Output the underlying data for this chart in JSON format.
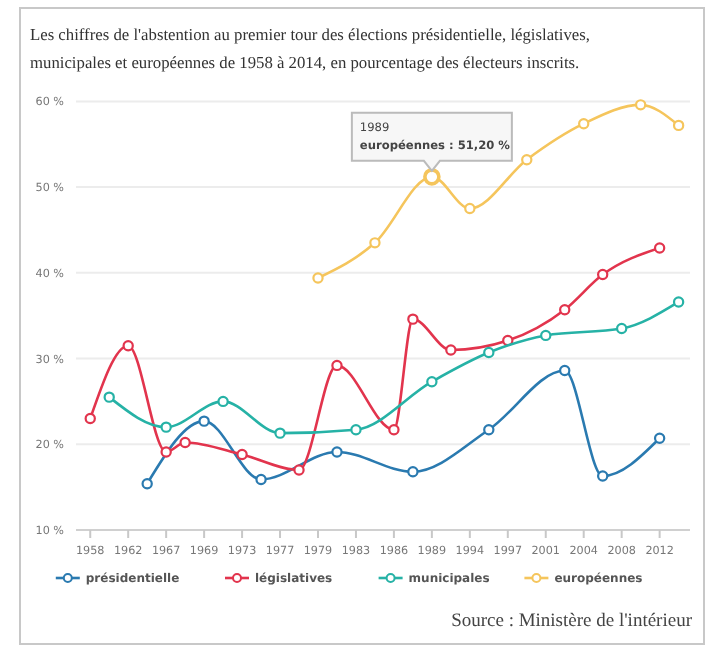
{
  "chart_data": {
    "type": "line",
    "title": "Les chiffres de l'abstention au premier tour des élections présidentielle, législatives, municipales et européennes de 1958 à 2014, en pourcentage des électeurs inscrits.",
    "annotations": [
      {
        "text": "1989\neuropéennes : 51,20 %",
        "x": "1989",
        "y": 51.2
      },
      "Source : Ministère de l'intérieur"
    ],
    "categories": [
      "1958",
      null,
      "1962",
      null,
      "1967",
      null,
      "1969",
      null,
      "1973",
      null,
      "1977",
      null,
      "1979",
      null,
      "1983",
      null,
      "1986",
      null,
      "1989",
      null,
      "1994",
      null,
      "1997",
      null,
      "2001",
      null,
      "2004",
      null,
      "2008",
      null,
      "2012",
      null
    ],
    "ylim": [
      10,
      60
    ],
    "yticks": [
      {
        "value": 10,
        "label": "10 %"
      },
      {
        "value": 20,
        "label": "20 %"
      },
      {
        "value": 30,
        "label": "30 %"
      },
      {
        "value": 40,
        "label": "40 %"
      },
      {
        "value": 50,
        "label": "50 %"
      },
      {
        "value": 60,
        "label": "60 %"
      }
    ],
    "grid": "y",
    "legend": "bottom",
    "marker": "circle",
    "line_style": "solid",
    "series": [
      {
        "name": "présidentielle",
        "color": "#2a7ab0",
        "values": [
          null,
          null,
          null,
          15.4,
          null,
          null,
          22.7,
          null,
          null,
          15.9,
          null,
          null,
          null,
          19.1,
          null,
          null,
          null,
          16.8,
          null,
          null,
          null,
          21.7,
          null,
          null,
          null,
          28.6,
          null,
          16.3,
          null,
          null,
          20.7,
          null
        ]
      },
      {
        "name": "législatives",
        "color": "#e2344d",
        "values": [
          23.0,
          null,
          31.5,
          null,
          19.1,
          20.2,
          null,
          null,
          18.8,
          null,
          null,
          17.0,
          null,
          29.2,
          null,
          null,
          21.7,
          34.6,
          null,
          31.0,
          null,
          null,
          32.1,
          null,
          null,
          35.7,
          null,
          39.8,
          null,
          null,
          42.9,
          null
        ]
      },
      {
        "name": "municipales",
        "color": "#26b2a6",
        "values": [
          null,
          25.5,
          null,
          null,
          22.0,
          null,
          null,
          25.0,
          null,
          null,
          21.3,
          null,
          null,
          null,
          21.7,
          null,
          null,
          null,
          27.3,
          null,
          null,
          30.7,
          null,
          null,
          32.7,
          null,
          null,
          null,
          33.5,
          null,
          null,
          36.6
        ]
      },
      {
        "name": "européennes",
        "color": "#f5c55c",
        "values": [
          null,
          null,
          null,
          null,
          null,
          null,
          null,
          null,
          null,
          null,
          null,
          null,
          39.4,
          null,
          null,
          43.5,
          null,
          null,
          51.2,
          null,
          47.5,
          null,
          null,
          53.2,
          null,
          null,
          57.4,
          null,
          null,
          59.6,
          null,
          57.2
        ]
      }
    ]
  }
}
